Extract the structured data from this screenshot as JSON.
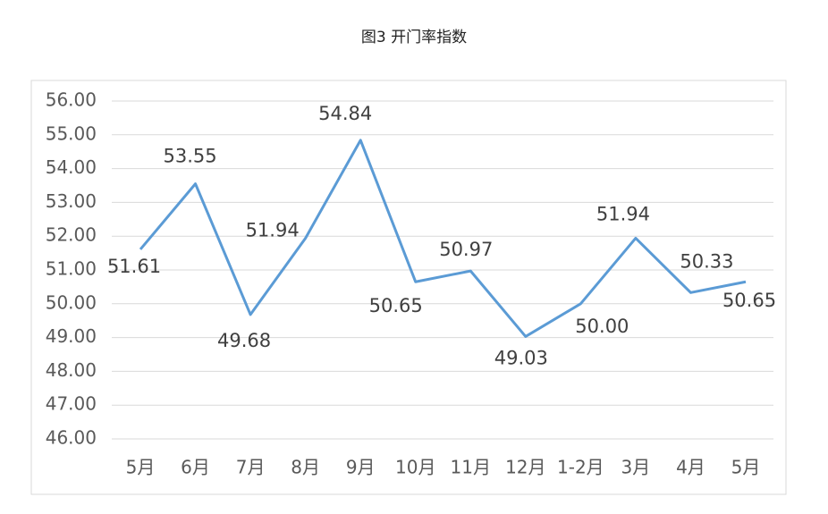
{
  "chart_data": {
    "type": "line",
    "title": "图3 开门率指数",
    "categories": [
      "5月",
      "6月",
      "7月",
      "8月",
      "9月",
      "10月",
      "11月",
      "12月",
      "1-2月",
      "3月",
      "4月",
      "5月"
    ],
    "series": [
      {
        "name": "开门率指数",
        "color": "#5b9bd5",
        "values": [
          51.61,
          53.55,
          49.68,
          51.94,
          54.84,
          50.65,
          50.97,
          49.03,
          50.0,
          51.94,
          50.33,
          50.65
        ],
        "value_labels": [
          "51.61",
          "53.55",
          "49.68",
          "51.94",
          "54.84",
          "50.65",
          "50.97",
          "49.03",
          "50.00",
          "51.94",
          "50.33",
          "50.65"
        ]
      }
    ],
    "ylim": [
      46,
      56
    ],
    "yticks": [
      {
        "value": 46,
        "label": "46.00"
      },
      {
        "value": 47,
        "label": "47.00"
      },
      {
        "value": 48,
        "label": "48.00"
      },
      {
        "value": 49,
        "label": "49.00"
      },
      {
        "value": 50,
        "label": "50.00"
      },
      {
        "value": 51,
        "label": "51.00"
      },
      {
        "value": 52,
        "label": "52.00"
      },
      {
        "value": 53,
        "label": "53.00"
      },
      {
        "value": 54,
        "label": "54.00"
      },
      {
        "value": 55,
        "label": "55.00"
      },
      {
        "value": 56,
        "label": "56.00"
      }
    ],
    "grid": true
  }
}
